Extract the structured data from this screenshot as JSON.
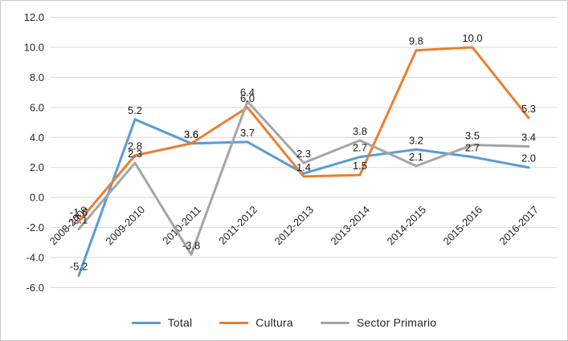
{
  "chart": {
    "background": "#FFFFFF",
    "border_color": "#CBCBCB",
    "grid_color": "#D9D9D9",
    "text_color": "#262626",
    "label_color": "#1A1A1A"
  },
  "chart_data": {
    "type": "line",
    "title": "",
    "xlabel": "",
    "ylabel": "",
    "categories": [
      "2008-2009",
      "2009-2010",
      "2010-2011",
      "2011-2012",
      "2012-2013",
      "2013-2014",
      "2014-2015",
      "2015-2016",
      "2016-2017"
    ],
    "series": [
      {
        "name": "Total",
        "color": "#5B9BD5",
        "values": [
          -5.2,
          5.2,
          3.6,
          3.7,
          1.6,
          2.7,
          3.2,
          2.7,
          2.0
        ],
        "labels": [
          "-5.2",
          "5.2",
          "3.6",
          "3.7",
          null,
          "2.7",
          "3.2",
          "2.7",
          "2.0"
        ]
      },
      {
        "name": "Cultura",
        "color": "#ED7D31",
        "values": [
          -1.6,
          2.8,
          3.6,
          6.0,
          1.4,
          1.5,
          9.8,
          10.0,
          5.3
        ],
        "labels": [
          "-1.6",
          "2.8",
          "3.6",
          "6.0",
          "1.4",
          "1.5",
          "9.8",
          "10.0",
          "5.3"
        ]
      },
      {
        "name": "Sector Primario",
        "color": "#A5A5A5",
        "values": [
          -2.1,
          2.3,
          -3.8,
          6.4,
          2.3,
          3.8,
          2.1,
          3.5,
          3.4
        ],
        "labels": [
          "-2.1",
          "2.3",
          "-3.8",
          "6.4",
          "2.3",
          "3.8",
          "2.1",
          "3.5",
          "3.4"
        ]
      }
    ],
    "ylim": [
      -6,
      12
    ],
    "ytick_step": 2,
    "ytick_labels": [
      "-6.0",
      "-4.0",
      "-2.0",
      "0.0",
      "2.0",
      "4.0",
      "6.0",
      "8.0",
      "10.0",
      "12.0"
    ],
    "grid": "horizontal",
    "legend_position": "bottom",
    "data_labels_shown": true
  }
}
